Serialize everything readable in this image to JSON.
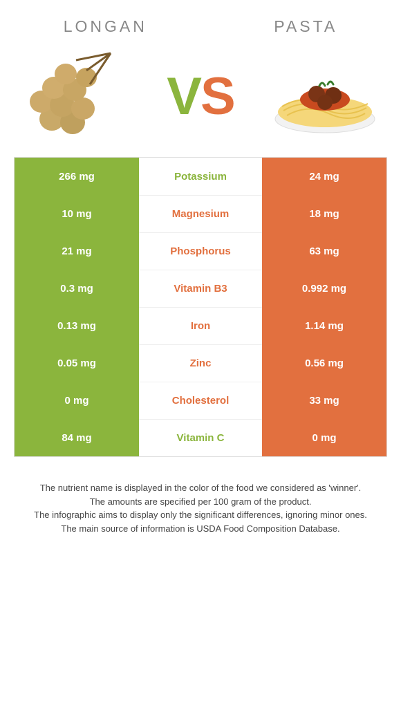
{
  "header": {
    "left": "Longan",
    "right": "Pasta"
  },
  "vs": {
    "v": "V",
    "s": "S"
  },
  "colors": {
    "green": "#8bb53d",
    "orange": "#e2703f"
  },
  "rows": [
    {
      "left": "266 mg",
      "mid": "Potassium",
      "right": "24 mg",
      "winner": "left"
    },
    {
      "left": "10 mg",
      "mid": "Magnesium",
      "right": "18 mg",
      "winner": "right"
    },
    {
      "left": "21 mg",
      "mid": "Phosphorus",
      "right": "63 mg",
      "winner": "right"
    },
    {
      "left": "0.3 mg",
      "mid": "Vitamin B3",
      "right": "0.992 mg",
      "winner": "right"
    },
    {
      "left": "0.13 mg",
      "mid": "Iron",
      "right": "1.14 mg",
      "winner": "right"
    },
    {
      "left": "0.05 mg",
      "mid": "Zinc",
      "right": "0.56 mg",
      "winner": "right"
    },
    {
      "left": "0 mg",
      "mid": "Cholesterol",
      "right": "33 mg",
      "winner": "right"
    },
    {
      "left": "84 mg",
      "mid": "Vitamin C",
      "right": "0 mg",
      "winner": "left"
    }
  ],
  "footer": {
    "l1": "The nutrient name is displayed in the color of the food we considered as 'winner'.",
    "l2": "The amounts are specified per 100 gram of the product.",
    "l3": "The infographic aims to display only the significant differences, ignoring minor ones.",
    "l4": "The main source of information is USDA Food Composition Database."
  }
}
